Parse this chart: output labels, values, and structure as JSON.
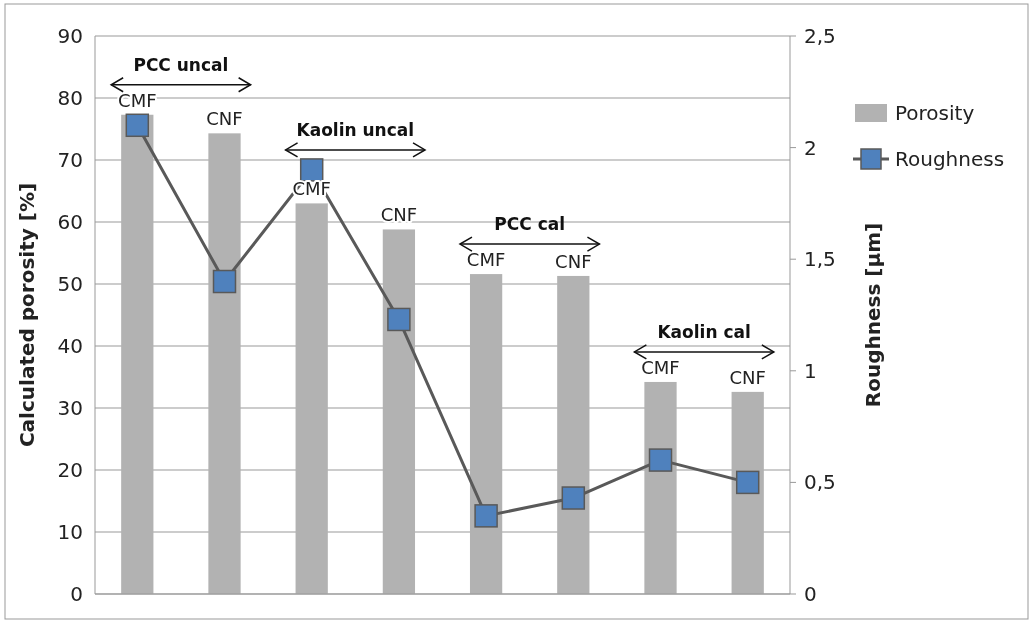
{
  "chart_data": {
    "type": "bar",
    "categories": [
      null,
      null,
      null,
      null,
      null,
      null,
      null,
      null
    ],
    "ylabel": "Calculated porosity [%]",
    "y2label": "Roughness [µm]",
    "ylim": [
      0,
      90
    ],
    "yticks": [
      0,
      10,
      20,
      30,
      40,
      50,
      60,
      70,
      80,
      90
    ],
    "y2lim": [
      0,
      2.5
    ],
    "y2ticks": [
      0,
      {
        "value": 0.5,
        "label": "0,5"
      },
      1,
      {
        "value": 1.5,
        "label": "1,5"
      },
      2,
      {
        "value": 2.5,
        "label": "2,5"
      }
    ],
    "grid": "y",
    "legend": "right",
    "annotations": [
      "PCC uncal",
      "Kaolin uncal",
      "PCC cal",
      "Kaolin cal"
    ],
    "series": [
      {
        "name": "Porosity",
        "color": "#b2b2b2",
        "values": [
          77.3,
          74.3,
          63,
          58.8,
          51.6,
          51.3,
          34.2,
          32.6
        ],
        "value_labels": [
          "CMF",
          "CNF",
          "CMF",
          "CNF",
          "CMF",
          "CNF",
          "CMF",
          "CNF"
        ]
      },
      {
        "name": "Roughness",
        "type": "line",
        "axis": "y2",
        "color": "#595959",
        "marker": "square",
        "values": [
          2.1,
          1.4,
          1.9,
          1.23,
          0.35,
          0.43,
          0.6,
          0.5
        ]
      }
    ]
  }
}
